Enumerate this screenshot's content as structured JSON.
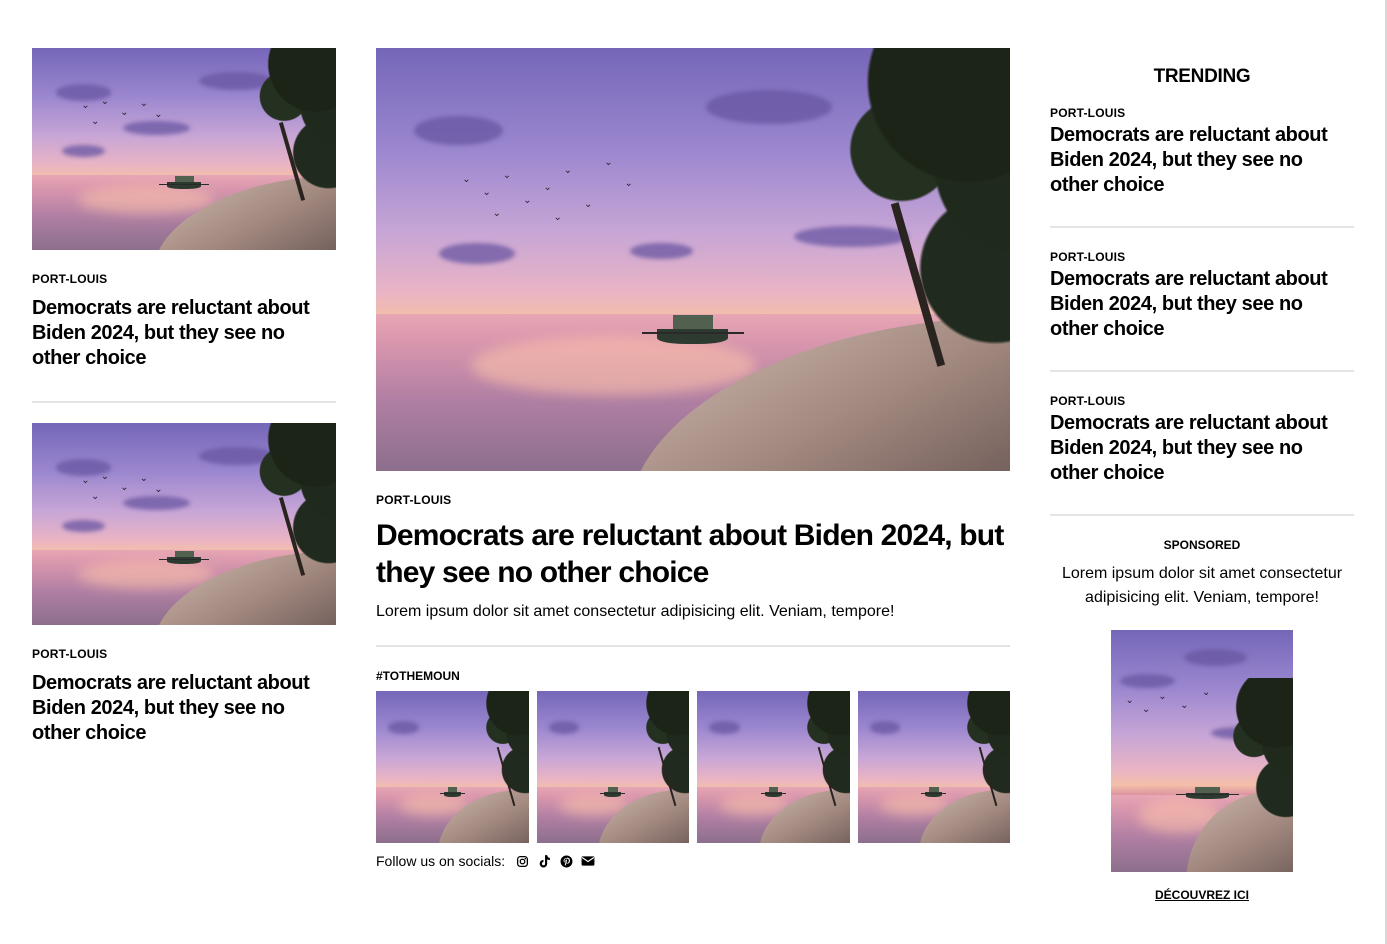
{
  "left_cards": [
    {
      "kicker": "PORT-LOUIS",
      "title": "Democrats are reluctant about Biden 2024, but they see no other choice"
    },
    {
      "kicker": "PORT-LOUIS",
      "title": "Democrats are reluctant about Biden 2024, but they see no other choice"
    }
  ],
  "hero": {
    "kicker": "PORT-LOUIS",
    "title": "Democrats are reluctant about Biden 2024, but they see no other choice",
    "text": "Lorem ipsum dolor sit amet consectetur adipisicing elit. Veniam, tempore!"
  },
  "gallery": {
    "tag": "#TOTHEMOUN",
    "image_count": 4
  },
  "socials": {
    "label": "Follow us on socials:",
    "icons": [
      "instagram-icon",
      "tiktok-icon",
      "pinterest-icon",
      "email-icon"
    ]
  },
  "trending": {
    "title": "TRENDING",
    "items": [
      {
        "kicker": "PORT-LOUIS",
        "title": "Democrats are reluctant about Biden 2024, but they see no other choice"
      },
      {
        "kicker": "PORT-LOUIS",
        "title": "Democrats are reluctant about Biden 2024, but they see no other choice"
      },
      {
        "kicker": "PORT-LOUIS",
        "title": "Democrats are reluctant about Biden 2024, but they see no other choice"
      }
    ]
  },
  "sponsored": {
    "label": "SPONSORED",
    "text": "Lorem ipsum dolor sit amet consectetur adipisicing elit. Veniam, tempore!",
    "cta": "DÉCOUVREZ ICI"
  }
}
